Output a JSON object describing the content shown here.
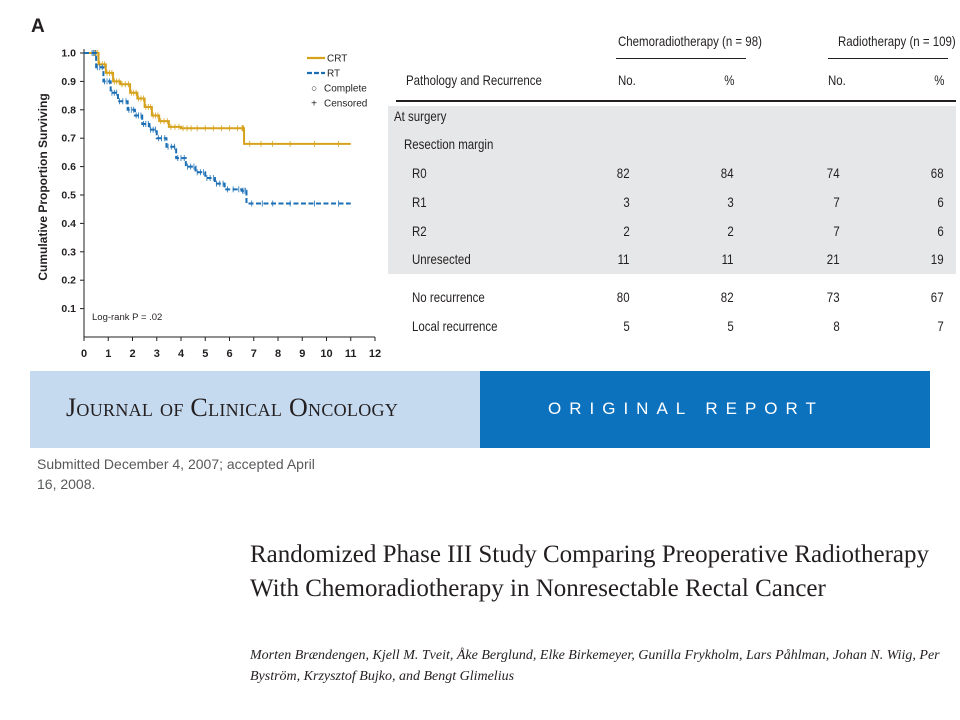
{
  "figure": {
    "panel_letter": "A",
    "chart_data": {
      "type": "line",
      "title": "",
      "xlabel": "",
      "ylabel": "Cumulative Proportion Surviving",
      "xlim": [
        0,
        12
      ],
      "ylim": [
        0,
        1.0
      ],
      "x_ticks": [
        "0",
        "1",
        "2",
        "3",
        "4",
        "5",
        "6",
        "7",
        "8",
        "9",
        "10",
        "11",
        "12"
      ],
      "y_ticks": [
        "0.1",
        "0.2",
        "0.3",
        "0.4",
        "0.5",
        "0.6",
        "0.7",
        "0.8",
        "0.9",
        "1.0"
      ],
      "legend": [
        {
          "label": "CRT",
          "style": "solid",
          "color": "#d6a21c"
        },
        {
          "label": "RT",
          "style": "dashed",
          "color": "#1b6fb5"
        },
        {
          "label": "Complete",
          "marker": "○"
        },
        {
          "label": "Censored",
          "marker": "+"
        }
      ],
      "legend_position": "top-right",
      "annotation": "Log-rank P = .02",
      "series": [
        {
          "name": "CRT",
          "color": "#d6a21c",
          "points": [
            [
              0,
              1.0
            ],
            [
              0.4,
              1.0
            ],
            [
              0.6,
              0.96
            ],
            [
              0.9,
              0.93
            ],
            [
              1.2,
              0.9
            ],
            [
              1.5,
              0.89
            ],
            [
              1.9,
              0.86
            ],
            [
              2.2,
              0.84
            ],
            [
              2.5,
              0.81
            ],
            [
              2.8,
              0.78
            ],
            [
              3.1,
              0.76
            ],
            [
              3.5,
              0.74
            ],
            [
              4.0,
              0.735
            ],
            [
              4.5,
              0.735
            ],
            [
              5.5,
              0.735
            ],
            [
              6.5,
              0.735
            ],
            [
              6.6,
              0.68
            ],
            [
              8.0,
              0.68
            ],
            [
              11.0,
              0.68
            ]
          ]
        },
        {
          "name": "RT",
          "color": "#1b6fb5",
          "points": [
            [
              0,
              1.0
            ],
            [
              0.3,
              1.0
            ],
            [
              0.5,
              0.95
            ],
            [
              0.8,
              0.9
            ],
            [
              1.1,
              0.86
            ],
            [
              1.4,
              0.83
            ],
            [
              1.8,
              0.8
            ],
            [
              2.1,
              0.78
            ],
            [
              2.4,
              0.75
            ],
            [
              2.7,
              0.73
            ],
            [
              3.0,
              0.7
            ],
            [
              3.4,
              0.67
            ],
            [
              3.8,
              0.63
            ],
            [
              4.2,
              0.6
            ],
            [
              4.6,
              0.58
            ],
            [
              5.0,
              0.56
            ],
            [
              5.4,
              0.54
            ],
            [
              5.8,
              0.52
            ],
            [
              6.5,
              0.515
            ],
            [
              6.7,
              0.47
            ],
            [
              8.0,
              0.47
            ],
            [
              11.0,
              0.47
            ]
          ]
        }
      ]
    }
  },
  "table": {
    "group_headers": [
      "Chemoradiotherapy (n = 98)",
      "Radiotherapy (n = 109)"
    ],
    "columns": [
      "Pathology and Recurrence",
      "No.",
      "%",
      "No.",
      "%"
    ],
    "rows": [
      {
        "label": "At surgery",
        "indent": 0,
        "values": [
          "",
          "",
          "",
          ""
        ]
      },
      {
        "label": "Resection margin",
        "indent": 1,
        "values": [
          "",
          "",
          "",
          ""
        ]
      },
      {
        "label": "R0",
        "indent": 2,
        "values": [
          "82",
          "84",
          "74",
          "68"
        ]
      },
      {
        "label": "R1",
        "indent": 2,
        "values": [
          "3",
          "3",
          "7",
          "6"
        ]
      },
      {
        "label": "R2",
        "indent": 2,
        "values": [
          "2",
          "2",
          "7",
          "6"
        ]
      },
      {
        "label": "Unresected",
        "indent": 2,
        "values": [
          "11",
          "11",
          "21",
          "19"
        ]
      },
      {
        "label": "No recurrence",
        "indent": 2,
        "values": [
          "80",
          "82",
          "73",
          "67"
        ]
      },
      {
        "label": "Local recurrence",
        "indent": 2,
        "values": [
          "5",
          "5",
          "8",
          "7"
        ]
      }
    ]
  },
  "banner": {
    "journal": "Journal of Clinical Oncology",
    "report_type": "ORIGINAL REPORT",
    "colors": {
      "left": "#c5d9ef",
      "right": "#0c72be"
    }
  },
  "article": {
    "submitted": "Submitted December 4, 2007; accepted April 16, 2008.",
    "title": "Randomized Phase III Study Comparing Preoperative Radiotherapy With Chemoradiotherapy in Nonresectable Rectal Cancer",
    "authors": "Morten Brændengen, Kjell M. Tveit, Åke Berglund, Elke Birkemeyer, Gunilla Frykholm, Lars Påhlman, Johan N. Wiig, Per Byström, Krzysztof Bujko, and Bengt Glimelius"
  }
}
